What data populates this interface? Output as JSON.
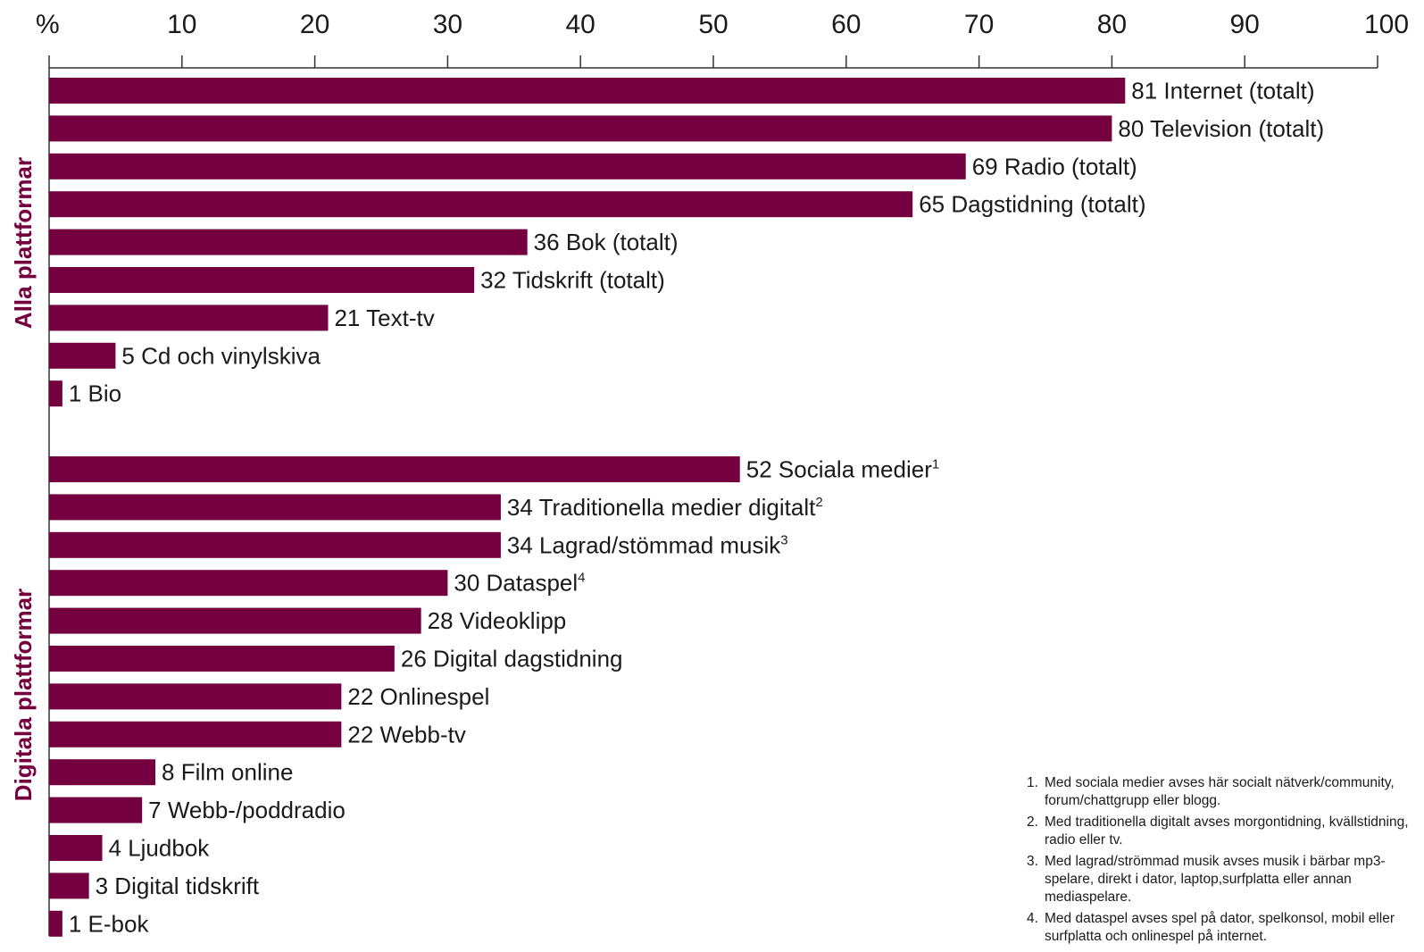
{
  "chart_data": {
    "type": "bar",
    "orientation": "horizontal",
    "unit_label": "%",
    "xlim": [
      0,
      100
    ],
    "x_ticks": [
      "10",
      "20",
      "30",
      "40",
      "50",
      "60",
      "70",
      "80",
      "90",
      "100"
    ],
    "bar_color": "#74003f",
    "groups": [
      {
        "name": "Alla plattformar",
        "bars": [
          {
            "value": 81,
            "label": "Internet (totalt)",
            "sup": ""
          },
          {
            "value": 80,
            "label": "Television (totalt)",
            "sup": ""
          },
          {
            "value": 69,
            "label": "Radio (totalt)",
            "sup": ""
          },
          {
            "value": 65,
            "label": "Dagstidning (totalt)",
            "sup": ""
          },
          {
            "value": 36,
            "label": "Bok (totalt)",
            "sup": ""
          },
          {
            "value": 32,
            "label": "Tidskrift (totalt)",
            "sup": ""
          },
          {
            "value": 21,
            "label": "Text-tv",
            "sup": ""
          },
          {
            "value": 5,
            "label": "Cd och vinylskiva",
            "sup": ""
          },
          {
            "value": 1,
            "label": "Bio",
            "sup": ""
          }
        ]
      },
      {
        "name": "Digitala plattformar",
        "bars": [
          {
            "value": 52,
            "label": "Sociala medier",
            "sup": "1"
          },
          {
            "value": 34,
            "label": "Traditionella medier digitalt",
            "sup": "2"
          },
          {
            "value": 34,
            "label": "Lagrad/stömmad musik",
            "sup": "3"
          },
          {
            "value": 30,
            "label": "Dataspel",
            "sup": "4"
          },
          {
            "value": 28,
            "label": "Videoklipp",
            "sup": ""
          },
          {
            "value": 26,
            "label": "Digital dagstidning",
            "sup": ""
          },
          {
            "value": 22,
            "label": "Onlinespel",
            "sup": ""
          },
          {
            "value": 22,
            "label": "Webb-tv",
            "sup": ""
          },
          {
            "value": 8,
            "label": "Film online",
            "sup": ""
          },
          {
            "value": 7,
            "label": "Webb-/poddradio",
            "sup": ""
          },
          {
            "value": 4,
            "label": "Ljudbok",
            "sup": ""
          },
          {
            "value": 3,
            "label": "Digital tidskrift",
            "sup": ""
          },
          {
            "value": 1,
            "label": "E-bok",
            "sup": ""
          }
        ]
      }
    ]
  },
  "footnotes": [
    {
      "num": "1.",
      "text": "Med sociala medier avses här socialt nätverk/community, forum/chattgrupp eller blogg."
    },
    {
      "num": "2.",
      "text": "Med traditionella digitalt avses morgontidning, kvällstidning, radio eller tv."
    },
    {
      "num": "3.",
      "text": "Med lagrad/strömmad musik avses musik i bärbar mp3-spelare, direkt i dator, laptop,surfplatta eller annan mediaspelare."
    },
    {
      "num": "4.",
      "text": "Med dataspel avses spel på dator, spelkonsol, mobil eller surfplatta och onlinespel på internet."
    }
  ]
}
